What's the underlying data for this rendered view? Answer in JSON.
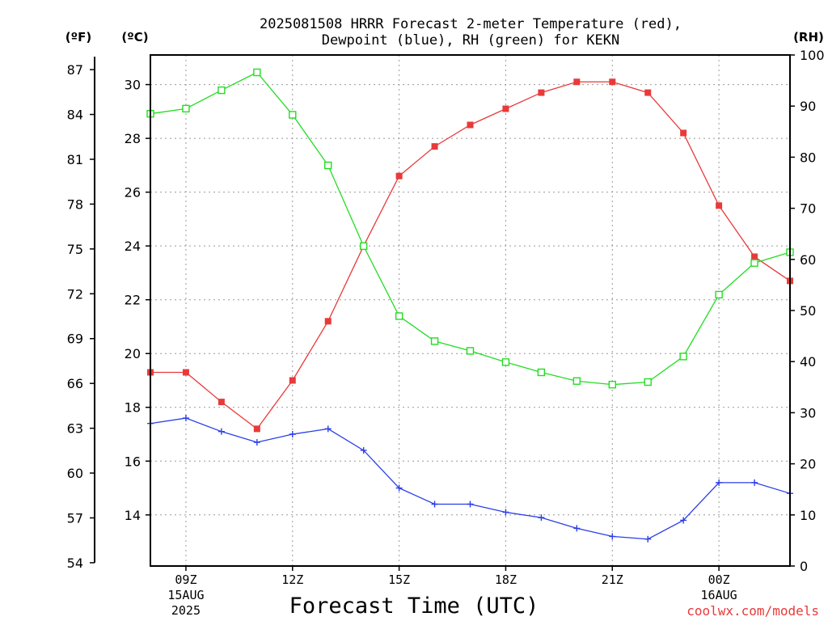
{
  "chart_data": {
    "type": "line",
    "title_line1": "2025081508 HRRR Forecast 2-meter Temperature (red),",
    "title_line2": "Dewpoint (blue), RH (green) for KEKN",
    "xlabel": "Forecast Time (UTC)",
    "credit": "coolwx.com/models",
    "unit_f": "(ºF)",
    "unit_c": "(ºC)",
    "unit_rh": "(RH)",
    "grid": true,
    "x": [
      8,
      9,
      10,
      11,
      12,
      13,
      14,
      15,
      16,
      17,
      18,
      19,
      20,
      21,
      22,
      23,
      24,
      25,
      26
    ],
    "xlim": [
      8,
      26
    ],
    "ylim_c": [
      12.1,
      31.1
    ],
    "ylim_rh": [
      0,
      100
    ],
    "c_ticks": [
      14,
      16,
      18,
      20,
      22,
      24,
      26,
      28,
      30
    ],
    "f_ticks": [
      54,
      57,
      60,
      63,
      66,
      69,
      72,
      75,
      78,
      81,
      84,
      87
    ],
    "rh_ticks": [
      0,
      10,
      20,
      30,
      40,
      50,
      60,
      70,
      80,
      90,
      100
    ],
    "x_ticks": [
      {
        "x": 9,
        "line1": "09Z",
        "line2": "15AUG",
        "line3": "2025"
      },
      {
        "x": 12,
        "line1": "12Z",
        "line2": "",
        "line3": ""
      },
      {
        "x": 15,
        "line1": "15Z",
        "line2": "",
        "line3": ""
      },
      {
        "x": 18,
        "line1": "18Z",
        "line2": "",
        "line3": ""
      },
      {
        "x": 21,
        "line1": "21Z",
        "line2": "",
        "line3": ""
      },
      {
        "x": 24,
        "line1": "00Z",
        "line2": "16AUG",
        "line3": ""
      }
    ],
    "series": [
      {
        "key": "temperature",
        "axis": "c",
        "color": "#e83a3a",
        "marker": "filled-square",
        "values": [
          19.3,
          19.3,
          18.2,
          17.2,
          19.0,
          21.2,
          24.0,
          26.6,
          27.7,
          28.5,
          29.1,
          29.7,
          30.1,
          30.1,
          29.7,
          28.2,
          25.5,
          23.6,
          22.7
        ]
      },
      {
        "key": "dewpoint",
        "axis": "c",
        "color": "#2a3ee8",
        "marker": "plus",
        "values": [
          17.4,
          17.6,
          17.1,
          16.7,
          17.0,
          17.2,
          16.4,
          15.0,
          14.4,
          14.4,
          14.1,
          13.9,
          13.5,
          13.2,
          13.1,
          13.8,
          15.2,
          15.2,
          14.8
        ]
      },
      {
        "key": "rh",
        "axis": "rh",
        "color": "#22dd22",
        "marker": "open-square",
        "values": [
          88.5,
          89.5,
          93.1,
          96.6,
          88.3,
          78.4,
          62.6,
          48.9,
          44.0,
          42.1,
          39.9,
          37.9,
          36.2,
          35.5,
          36.0,
          41.0,
          53.1,
          59.3,
          61.4
        ]
      }
    ]
  }
}
